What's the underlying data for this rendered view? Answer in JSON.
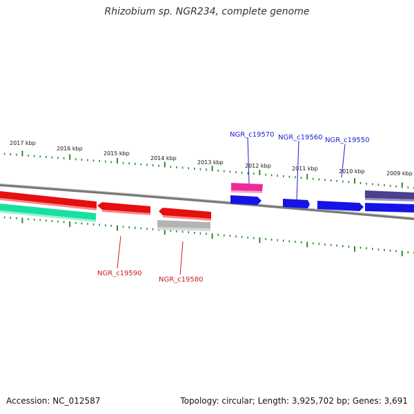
{
  "title": "Rhizobium sp. NGR234, complete genome",
  "footer": {
    "accession": "Accession: NC_012587",
    "summary": "Topology: circular; Length: 3,925,702 bp; Genes: 3,691"
  },
  "kbp_labels": [
    "2017 kbp",
    "2016 kbp",
    "2015 kbp",
    "2014 kbp",
    "2013 kbp",
    "2012 kbp",
    "2011 kbp",
    "2010 kbp",
    "2009 kbp"
  ],
  "gene_labels": {
    "forward": [
      "NGR_c19570",
      "NGR_c19560",
      "NGR_c19550"
    ],
    "reverse": [
      "NGR_c19590",
      "NGR_c19580"
    ]
  },
  "colors": {
    "forward_label": "#1a1acc",
    "reverse_label": "#cc1a1a",
    "blue_gene": "#1414e6",
    "red_gene": "#e60f0f",
    "pink_gene": "#ee2a9a",
    "purple_gene": "#4b3f8f",
    "teal_gene": "#18e0a0",
    "gray_gene": "#b4b4b4",
    "tick": "#2a8a2a",
    "backbone": "#777777"
  }
}
